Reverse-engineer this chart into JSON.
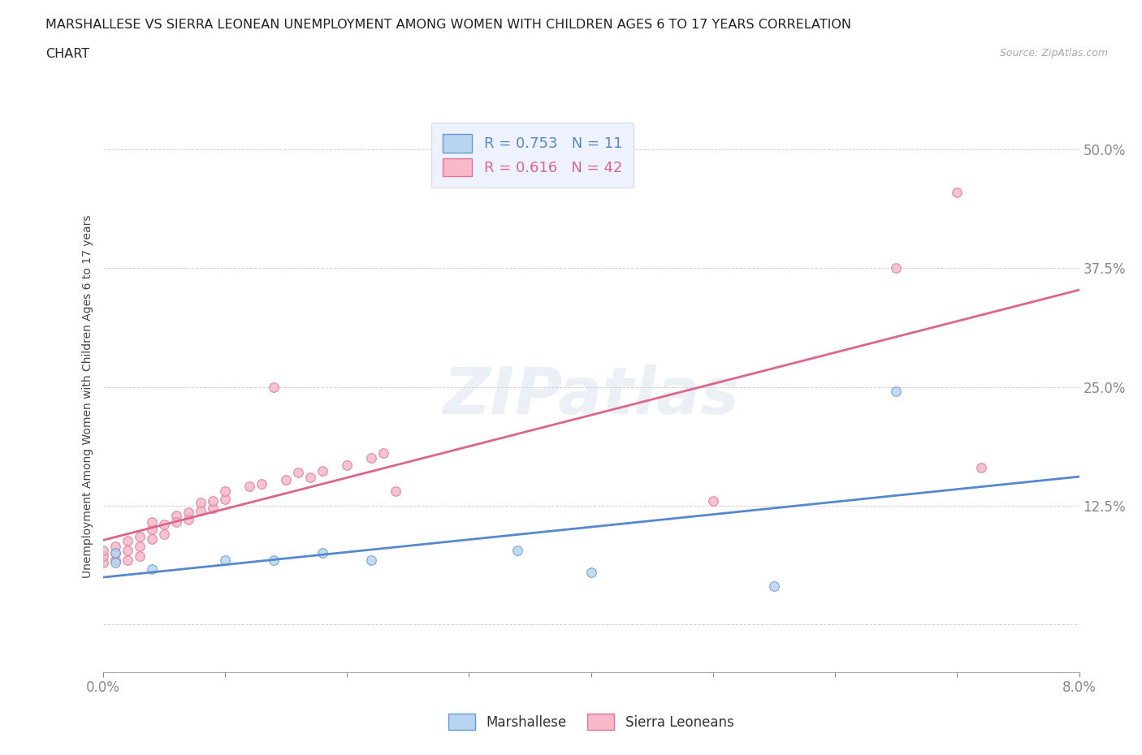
{
  "title_line1": "MARSHALLESE VS SIERRA LEONEAN UNEMPLOYMENT AMONG WOMEN WITH CHILDREN AGES 6 TO 17 YEARS CORRELATION",
  "title_line2": "CHART",
  "source": "Source: ZipAtlas.com",
  "ylabel": "Unemployment Among Women with Children Ages 6 to 17 years",
  "xlim": [
    0.0,
    0.08
  ],
  "ylim": [
    -0.05,
    0.53
  ],
  "yticks": [
    0.0,
    0.125,
    0.25,
    0.375,
    0.5
  ],
  "ytick_labels": [
    "",
    "12.5%",
    "25.0%",
    "37.5%",
    "50.0%"
  ],
  "xticks": [
    0.0,
    0.01,
    0.02,
    0.03,
    0.04,
    0.05,
    0.06,
    0.07,
    0.08
  ],
  "xtick_labels": [
    "0.0%",
    "",
    "",
    "",
    "",
    "",
    "",
    "",
    "8.0%"
  ],
  "marshallese_dot_color": "#b8d4f0",
  "marshallese_edge_color": "#6699cc",
  "sierra_dot_color": "#f8b8c8",
  "sierra_edge_color": "#dd7799",
  "marshallese_line_color": "#5588cc",
  "sierra_line_color": "#dd6688",
  "R_marshallese": 0.753,
  "N_marshallese": 11,
  "R_sierra": 0.616,
  "N_sierra": 42,
  "watermark": "ZIPatlas",
  "background_color": "#ffffff",
  "marshallese_scatter": [
    [
      0.001,
      0.065
    ],
    [
      0.001,
      0.075
    ],
    [
      0.004,
      0.058
    ],
    [
      0.01,
      0.068
    ],
    [
      0.014,
      0.068
    ],
    [
      0.018,
      0.075
    ],
    [
      0.022,
      0.068
    ],
    [
      0.034,
      0.078
    ],
    [
      0.04,
      0.055
    ],
    [
      0.055,
      0.04
    ],
    [
      0.065,
      0.245
    ]
  ],
  "sierra_scatter": [
    [
      0.0,
      0.065
    ],
    [
      0.0,
      0.072
    ],
    [
      0.0,
      0.078
    ],
    [
      0.001,
      0.068
    ],
    [
      0.001,
      0.075
    ],
    [
      0.001,
      0.082
    ],
    [
      0.002,
      0.068
    ],
    [
      0.002,
      0.078
    ],
    [
      0.002,
      0.088
    ],
    [
      0.003,
      0.072
    ],
    [
      0.003,
      0.082
    ],
    [
      0.003,
      0.092
    ],
    [
      0.004,
      0.09
    ],
    [
      0.004,
      0.1
    ],
    [
      0.004,
      0.108
    ],
    [
      0.005,
      0.095
    ],
    [
      0.005,
      0.105
    ],
    [
      0.006,
      0.115
    ],
    [
      0.006,
      0.108
    ],
    [
      0.007,
      0.118
    ],
    [
      0.007,
      0.11
    ],
    [
      0.008,
      0.12
    ],
    [
      0.008,
      0.128
    ],
    [
      0.009,
      0.122
    ],
    [
      0.009,
      0.13
    ],
    [
      0.01,
      0.132
    ],
    [
      0.01,
      0.14
    ],
    [
      0.012,
      0.145
    ],
    [
      0.013,
      0.148
    ],
    [
      0.014,
      0.25
    ],
    [
      0.015,
      0.152
    ],
    [
      0.016,
      0.16
    ],
    [
      0.017,
      0.155
    ],
    [
      0.018,
      0.162
    ],
    [
      0.02,
      0.168
    ],
    [
      0.022,
      0.175
    ],
    [
      0.023,
      0.18
    ],
    [
      0.024,
      0.14
    ],
    [
      0.05,
      0.13
    ],
    [
      0.065,
      0.375
    ],
    [
      0.07,
      0.455
    ],
    [
      0.072,
      0.165
    ]
  ]
}
